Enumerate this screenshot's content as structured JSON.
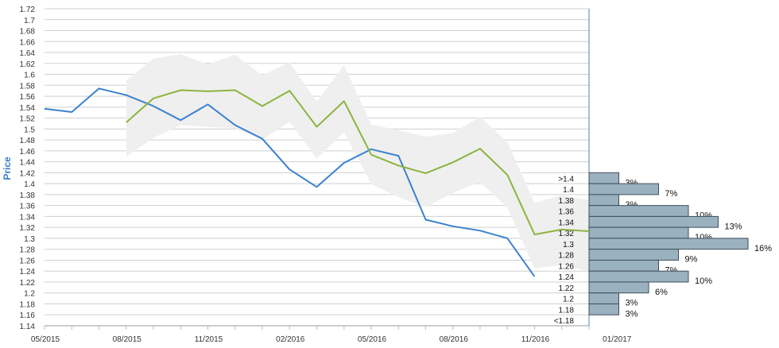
{
  "chart_data": {
    "type": "line",
    "ylabel": "Price",
    "ylim": [
      1.14,
      1.72
    ],
    "yticks": [
      "1.14",
      "1.16",
      "1.18",
      "1.2",
      "1.22",
      "1.24",
      "1.26",
      "1.28",
      "1.3",
      "1.32",
      "1.34",
      "1.36",
      "1.38",
      "1.4",
      "1.42",
      "1.44",
      "1.46",
      "1.48",
      "1.5",
      "1.52",
      "1.54",
      "1.56",
      "1.58",
      "1.6",
      "1.62",
      "1.64",
      "1.66",
      "1.68",
      "1.7",
      "1.72"
    ],
    "xticks": [
      "05/2015",
      "08/2015",
      "11/2015",
      "02/2016",
      "05/2016",
      "08/2016",
      "11/2016",
      "01/2017"
    ],
    "x": [
      0,
      1,
      2,
      3,
      4,
      5,
      6,
      7,
      8,
      9,
      10,
      11,
      12,
      13,
      14,
      15,
      16,
      17,
      18,
      19,
      20
    ],
    "series": [
      {
        "color": "#3a82d0",
        "values": [
          1.537,
          1.531,
          1.574,
          1.562,
          1.542,
          1.516,
          1.545,
          1.507,
          1.482,
          1.426,
          1.394,
          1.438,
          1.463,
          1.451,
          1.334,
          1.322,
          1.314,
          1.3,
          1.23,
          null,
          null
        ]
      },
      {
        "color": "#8db43e",
        "values": [
          null,
          null,
          null,
          1.512,
          1.556,
          1.571,
          1.569,
          1.571,
          1.542,
          1.57,
          1.504,
          1.551,
          1.453,
          1.433,
          1.419,
          1.439,
          1.464,
          1.416,
          1.307,
          1.316,
          1.313
        ]
      }
    ],
    "band": {
      "color": "#efefef",
      "upper": [
        null,
        null,
        null,
        1.589,
        1.629,
        1.637,
        1.618,
        1.636,
        1.598,
        1.622,
        1.55,
        1.617,
        1.508,
        1.498,
        1.486,
        1.493,
        1.522,
        1.476,
        1.365,
        1.379,
        1.37
      ],
      "lower": [
        null,
        null,
        null,
        1.449,
        1.484,
        1.507,
        1.504,
        1.501,
        1.481,
        1.513,
        1.446,
        1.494,
        1.399,
        1.375,
        1.357,
        1.383,
        1.403,
        1.356,
        1.245,
        1.251,
        1.24
      ]
    },
    "histogram": {
      "color": "#9ab1bf",
      "bins": [
        ">1.4",
        "1.4",
        "1.38",
        "1.36",
        "1.34",
        "1.32",
        "1.3",
        "1.28",
        "1.26",
        "1.24",
        "1.22",
        "1.2",
        "1.18",
        "<1.18"
      ],
      "percents": [
        3,
        7,
        3,
        10,
        13,
        10,
        16,
        9,
        7,
        10,
        6,
        3,
        3,
        null
      ],
      "labels": [
        "3%",
        "7%",
        "3%",
        "10%",
        "13%",
        "10%",
        "16%",
        "9%",
        "7%",
        "10%",
        "6%",
        "3%",
        "3%",
        ""
      ]
    }
  }
}
